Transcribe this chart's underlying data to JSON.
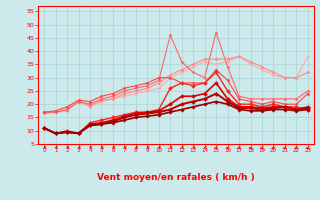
{
  "xlabel": "Vent moyen/en rafales ( km/h )",
  "bg_color": "#cce9ec",
  "grid_color": "#aad4d8",
  "x_ticks": [
    0,
    1,
    2,
    3,
    4,
    5,
    6,
    7,
    8,
    9,
    10,
    11,
    12,
    13,
    14,
    15,
    16,
    17,
    18,
    19,
    20,
    21,
    22,
    23
  ],
  "ylim": [
    5,
    57
  ],
  "xlim": [
    -0.5,
    23.5
  ],
  "yticks": [
    5,
    10,
    15,
    20,
    25,
    30,
    35,
    40,
    45,
    50,
    55
  ],
  "tick_color": "red",
  "spine_color": "red",
  "xlabel_color": "red",
  "xlabel_fontsize": 6.5,
  "xlabel_fontweight": "bold",
  "lines": [
    {
      "color": "#ffaaaa",
      "lw": 0.8,
      "marker": "D",
      "ms": 1.5,
      "y": [
        16.5,
        17,
        17.5,
        21,
        19,
        21,
        22,
        23,
        24,
        25,
        26,
        30,
        32,
        34,
        36,
        35,
        36,
        38,
        35,
        33,
        31,
        30,
        30,
        38
      ]
    },
    {
      "color": "#ff8888",
      "lw": 0.8,
      "marker": "D",
      "ms": 1.5,
      "y": [
        16.5,
        17,
        18,
        21,
        19.5,
        21.5,
        22,
        24,
        25,
        26,
        28,
        31,
        33,
        35,
        37,
        37,
        37,
        38,
        36,
        34,
        32,
        30,
        30,
        32
      ]
    },
    {
      "color": "#ff6666",
      "lw": 0.8,
      "marker": "D",
      "ms": 1.5,
      "y": [
        17,
        17,
        18,
        21,
        20,
        22,
        23,
        25,
        26,
        27,
        29,
        46,
        36,
        32,
        30,
        47,
        34,
        23,
        22,
        22,
        22,
        22,
        22,
        25
      ]
    },
    {
      "color": "#ff4444",
      "lw": 0.8,
      "marker": "D",
      "ms": 1.5,
      "y": [
        17,
        17.5,
        19,
        21.5,
        21,
        23,
        24,
        26,
        27,
        28,
        30,
        30,
        28,
        28,
        28,
        33,
        29,
        22,
        21,
        20,
        21,
        20,
        20,
        24
      ]
    },
    {
      "color": "#ff2222",
      "lw": 1.0,
      "marker": "D",
      "ms": 2.0,
      "y": [
        11,
        9,
        10,
        9,
        13,
        14,
        15,
        16,
        17,
        17,
        18,
        26,
        28,
        27,
        28,
        32,
        25,
        20,
        20,
        19,
        20,
        19,
        19,
        18
      ]
    },
    {
      "color": "#dd0000",
      "lw": 1.2,
      "marker": "D",
      "ms": 2.0,
      "y": [
        11,
        9,
        9.5,
        9,
        12.5,
        13,
        14,
        15.5,
        16.5,
        17,
        17.5,
        20,
        23,
        23,
        24,
        28,
        22,
        19,
        19,
        18.5,
        19,
        19,
        18,
        19
      ]
    },
    {
      "color": "#bb0000",
      "lw": 1.4,
      "marker": "D",
      "ms": 2.0,
      "y": [
        11,
        9,
        9.5,
        9,
        12,
        12.5,
        13.5,
        15,
        16,
        16.5,
        17,
        18,
        20,
        21,
        22,
        24,
        21,
        18.5,
        18.5,
        18,
        18.5,
        19,
        18,
        18.5
      ]
    },
    {
      "color": "#990000",
      "lw": 1.2,
      "marker": "D",
      "ms": 1.8,
      "y": [
        11,
        9,
        9.5,
        9,
        12,
        12.5,
        13,
        14,
        15,
        15.5,
        16,
        17,
        18,
        19,
        20,
        21,
        20,
        18,
        17.5,
        17.5,
        18,
        18,
        17.5,
        18
      ]
    }
  ],
  "arrow_angles": [
    225,
    225,
    225,
    225,
    225,
    225,
    225,
    225,
    225,
    225,
    225,
    225,
    225,
    225,
    225,
    270,
    270,
    270,
    270,
    270,
    270,
    270,
    270,
    270
  ]
}
